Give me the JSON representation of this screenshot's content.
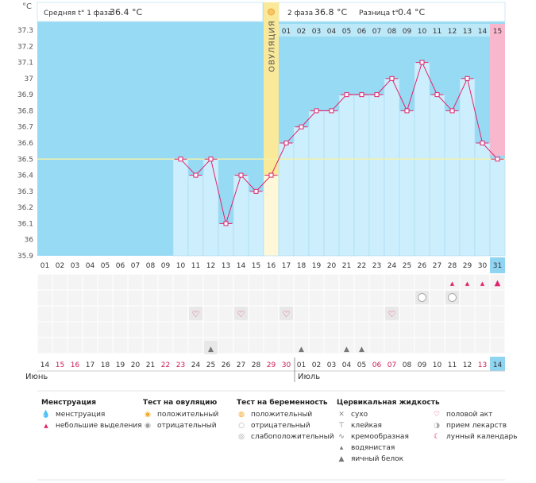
{
  "chart_data": {
    "type": "line",
    "ylabel": "°C",
    "yticks": [
      35.9,
      36,
      36.1,
      36.2,
      36.3,
      36.4,
      36.5,
      36.6,
      36.7,
      36.8,
      36.9,
      37,
      37.1,
      37.2,
      37.3
    ],
    "ylim": [
      35.9,
      37.35
    ],
    "coverline": 36.5,
    "ovulation_label": "ОВУЛЯЦИЯ",
    "ovulation_day_index": 15,
    "phase1_header": {
      "label": "Средняя t° 1 фаза",
      "value": "36.4 °C"
    },
    "phase2_header": {
      "label": "2 фаза",
      "value": "36.8 °C",
      "diff_label": "Разница t°",
      "diff_value": "0.4 °C"
    },
    "cycle_days": [
      "01",
      "02",
      "03",
      "04",
      "05",
      "06",
      "07",
      "08",
      "09",
      "10",
      "11",
      "12",
      "13",
      "14",
      "15",
      "16",
      "17",
      "18",
      "19",
      "20",
      "21",
      "22",
      "23",
      "24",
      "25",
      "26",
      "27",
      "28",
      "29",
      "30",
      "31"
    ],
    "luteal_days": [
      "01",
      "02",
      "03",
      "04",
      "05",
      "06",
      "07",
      "08",
      "09",
      "10",
      "11",
      "12",
      "13",
      "14",
      "15"
    ],
    "temperatures": [
      null,
      null,
      null,
      null,
      null,
      null,
      null,
      null,
      null,
      36.5,
      36.4,
      36.5,
      36.1,
      36.4,
      36.3,
      36.4,
      36.6,
      36.7,
      36.8,
      36.8,
      36.9,
      36.9,
      36.9,
      37.0,
      36.8,
      37.1,
      36.9,
      36.8,
      37.0,
      36.6,
      36.5
    ],
    "dates": [
      "14",
      "15",
      "16",
      "17",
      "18",
      "19",
      "20",
      "21",
      "22",
      "23",
      "24",
      "25",
      "26",
      "27",
      "28",
      "29",
      "30",
      "01",
      "02",
      "03",
      "04",
      "05",
      "06",
      "07",
      "08",
      "09",
      "10",
      "11",
      "12",
      "13",
      "14"
    ],
    "weekend_date_indices": [
      1,
      2,
      8,
      9,
      15,
      16,
      22,
      23,
      29
    ],
    "month_labels": [
      "Июнь",
      "Июль"
    ],
    "markers": {
      "menstruation_small_days": [
        28,
        29,
        30
      ],
      "menstruation_day": 31,
      "pregnancy_negative_days": [
        26,
        28
      ],
      "intercourse_days": [
        11,
        14,
        17,
        24
      ],
      "egg_white_days": [
        12,
        18,
        21,
        22
      ]
    }
  },
  "legend": {
    "menstruation": {
      "title": "Менструация",
      "items": [
        {
          "icon": "menstruation-icon",
          "label": "менструация"
        },
        {
          "icon": "spotting-icon",
          "label": "небольшие выделения"
        }
      ]
    },
    "ovulation_test": {
      "title": "Тест на овуляцию",
      "items": [
        {
          "icon": "ovulation-positive-icon",
          "label": "положительный"
        },
        {
          "icon": "ovulation-negative-icon",
          "label": "отрицательный"
        }
      ]
    },
    "pregnancy_test": {
      "title": "Тест на беременность",
      "items": [
        {
          "icon": "pregnancy-positive-icon",
          "label": "положительный"
        },
        {
          "icon": "pregnancy-negative-icon",
          "label": "отрицательный"
        },
        {
          "icon": "pregnancy-weak-icon",
          "label": "слабоположительный"
        }
      ]
    },
    "cervical_fluid": {
      "title": "Цервикальная жидкость",
      "items": [
        {
          "icon": "dry-icon",
          "label": "сухо"
        },
        {
          "icon": "sticky-icon",
          "label": "клейкая"
        },
        {
          "icon": "creamy-icon",
          "label": "кремообразная"
        },
        {
          "icon": "watery-icon",
          "label": "водянистая"
        },
        {
          "icon": "egg-white-icon",
          "label": "яичный белок"
        }
      ]
    },
    "other": {
      "items": [
        {
          "icon": "intercourse-icon",
          "label": "половой акт"
        },
        {
          "icon": "medication-icon",
          "label": "прием лекарств"
        },
        {
          "icon": "lunar-calendar-icon",
          "label": "лунный календарь"
        }
      ]
    }
  },
  "colors": {
    "sky": "#8ed6f2",
    "phase1_bg": "#97daf4",
    "bar": "#cdeefc",
    "bar_border": "#a5dcf2",
    "ovulation": "#fbe99a",
    "highlight_pink": "#f9b7ce",
    "line": "#e0246c",
    "coverline": "#f2f2a8",
    "header_bg": "#ffffff",
    "day_header_bg": "#bde8f8",
    "grid_bg": "#f4f4f4",
    "weekend_red": "#cc1a57",
    "today_bg": "#8fd4f0"
  }
}
